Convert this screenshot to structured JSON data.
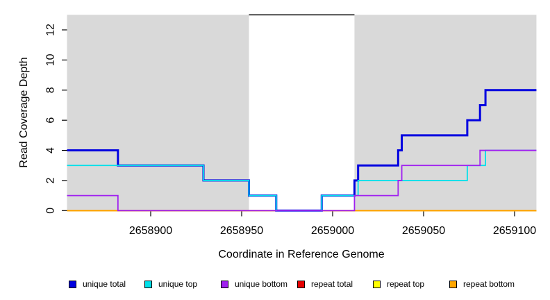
{
  "chart_data": {
    "type": "line",
    "subtype": "step",
    "title": "",
    "xlabel": "Coordinate in Reference Genome",
    "ylabel": "Read Coverage Depth",
    "xlim": [
      2658854,
      2659112
    ],
    "ylim": [
      0,
      13
    ],
    "x_ticks": [
      2658900,
      2658950,
      2659000,
      2659050,
      2659100
    ],
    "y_ticks": [
      0,
      2,
      4,
      6,
      8,
      10,
      12
    ],
    "grid": false,
    "background_shading": {
      "color": "#d9d9d9",
      "regions": [
        {
          "x_start": 2658854,
          "x_end": 2658954
        },
        {
          "x_start": 2659012,
          "x_end": 2659112
        }
      ]
    },
    "top_cap_line": {
      "y": 13,
      "x_start": 2658954,
      "x_end": 2659012,
      "color": "#000000"
    },
    "series": [
      {
        "name": "repeat total",
        "color": "#e60000",
        "width": 1.8,
        "steps": [
          [
            2658854,
            0
          ]
        ]
      },
      {
        "name": "repeat top",
        "color": "#ffff00",
        "width": 1.8,
        "steps": [
          [
            2658854,
            0
          ]
        ]
      },
      {
        "name": "repeat bottom",
        "color": "#ffa500",
        "width": 1.8,
        "steps": [
          [
            2658854,
            0
          ]
        ]
      },
      {
        "name": "unique total",
        "color": "#0000e0",
        "width": 3,
        "steps": [
          [
            2658854,
            4
          ],
          [
            2658882,
            3
          ],
          [
            2658929,
            2
          ],
          [
            2658954,
            1
          ],
          [
            2658969,
            0
          ],
          [
            2658994,
            1
          ],
          [
            2659012,
            2
          ],
          [
            2659014,
            3
          ],
          [
            2659036,
            4
          ],
          [
            2659038,
            5
          ],
          [
            2659074,
            6
          ],
          [
            2659081,
            7
          ],
          [
            2659084,
            8
          ]
        ]
      },
      {
        "name": "unique top",
        "color": "#00e0ea",
        "width": 1.8,
        "steps": [
          [
            2658854,
            3
          ],
          [
            2658929,
            2
          ],
          [
            2658954,
            1
          ],
          [
            2658969,
            0
          ],
          [
            2658994,
            1
          ],
          [
            2659014,
            2
          ],
          [
            2659074,
            3
          ],
          [
            2659084,
            4
          ]
        ]
      },
      {
        "name": "unique bottom",
        "color": "#a020f0",
        "width": 1.8,
        "steps": [
          [
            2658854,
            1
          ],
          [
            2658882,
            0
          ],
          [
            2659012,
            1
          ],
          [
            2659036,
            2
          ],
          [
            2659038,
            3
          ],
          [
            2659081,
            4
          ]
        ]
      }
    ],
    "legend": {
      "position": "bottom",
      "items": [
        {
          "label": "unique total",
          "color": "#0000e0"
        },
        {
          "label": "unique top",
          "color": "#00e0ea"
        },
        {
          "label": "unique bottom",
          "color": "#a020f0"
        },
        {
          "label": "repeat total",
          "color": "#e60000"
        },
        {
          "label": "repeat top",
          "color": "#ffff00"
        },
        {
          "label": "repeat bottom",
          "color": "#ffa500"
        }
      ]
    }
  }
}
